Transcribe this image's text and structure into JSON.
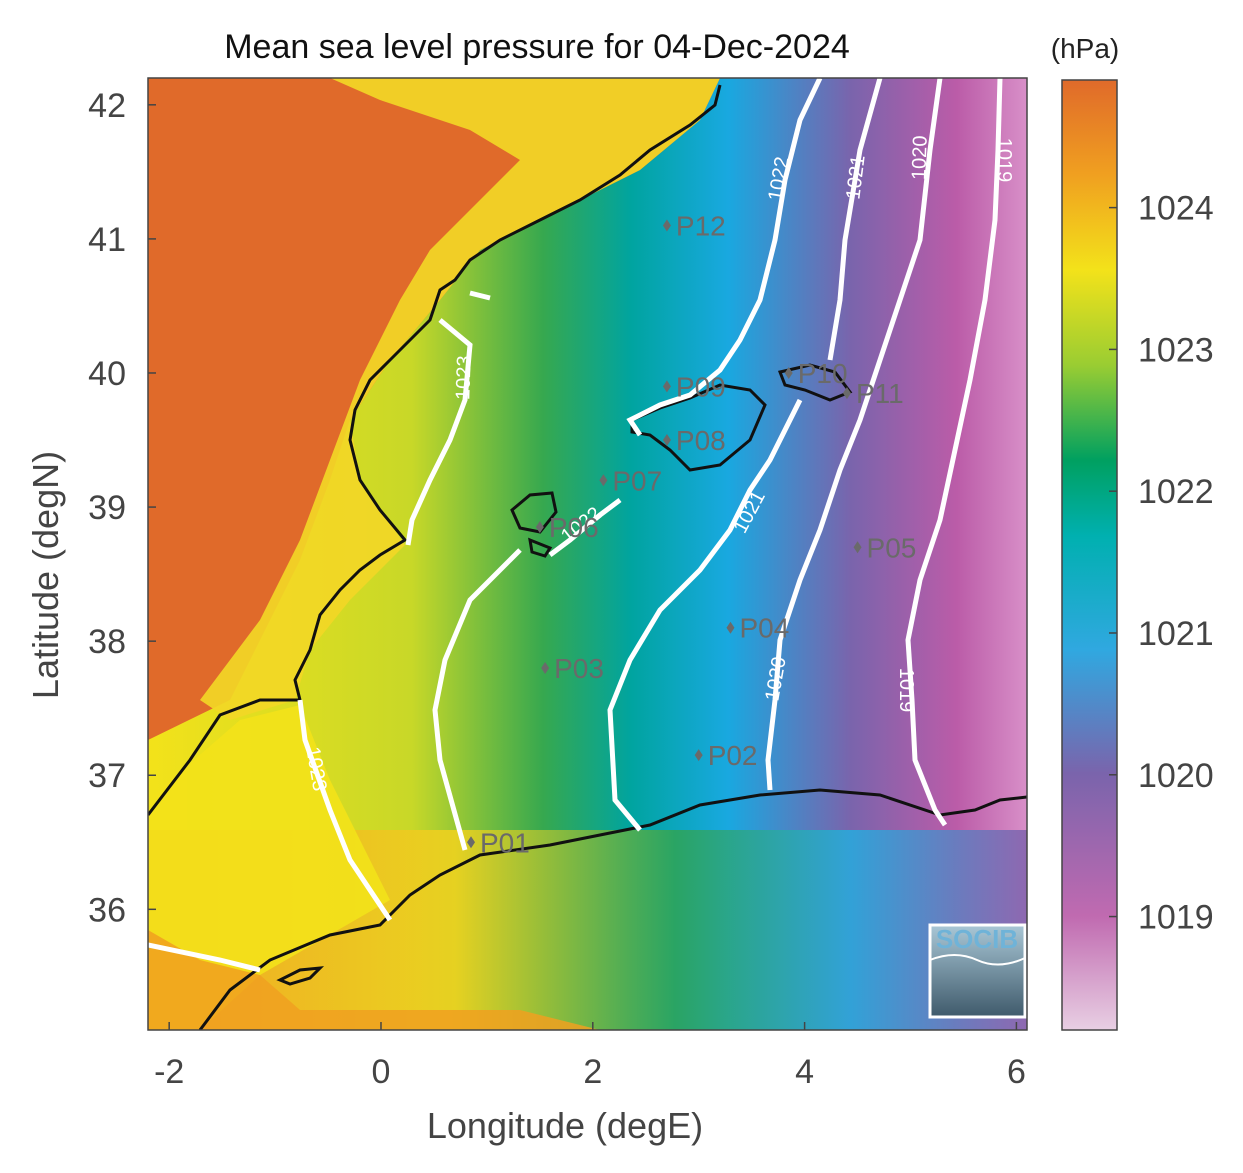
{
  "chart_data": {
    "type": "heatmap",
    "title": "Mean sea level pressure for 04-Dec-2024",
    "xlabel": "Longitude (degE)",
    "ylabel": "Latitude (degN)",
    "xlim": [
      -2.2,
      6.1
    ],
    "ylim": [
      35.1,
      42.2
    ],
    "xticks": [
      -2,
      0,
      2,
      4,
      6
    ],
    "yticks": [
      36,
      37,
      38,
      39,
      40,
      41,
      42
    ],
    "colorbar": {
      "unit": "(hPa)",
      "range": [
        1018.2,
        1024.9
      ],
      "ticks": [
        1019,
        1020,
        1021,
        1022,
        1023,
        1024
      ],
      "colors": [
        "#e8cfe3",
        "#c06ab0",
        "#7a64ac",
        "#30a8e0",
        "#00b0b0",
        "#00a060",
        "#9acd32",
        "#f3e21a",
        "#f0a020",
        "#e06a2a"
      ]
    },
    "contours": [
      {
        "level": "1023"
      },
      {
        "level": "1022"
      },
      {
        "level": "1021"
      },
      {
        "level": "1020"
      },
      {
        "level": "1019"
      }
    ],
    "stations": [
      {
        "name": "P01",
        "lon": 0.85,
        "lat": 36.5
      },
      {
        "name": "P02",
        "lon": 3.0,
        "lat": 37.15
      },
      {
        "name": "P03",
        "lon": 1.55,
        "lat": 37.8
      },
      {
        "name": "P04",
        "lon": 3.3,
        "lat": 38.1
      },
      {
        "name": "P05",
        "lon": 4.5,
        "lat": 38.7
      },
      {
        "name": "P06",
        "lon": 1.5,
        "lat": 38.85
      },
      {
        "name": "P07",
        "lon": 2.1,
        "lat": 39.2
      },
      {
        "name": "P08",
        "lon": 2.7,
        "lat": 39.5
      },
      {
        "name": "P09",
        "lon": 2.7,
        "lat": 39.9
      },
      {
        "name": "P10",
        "lon": 3.85,
        "lat": 40.0
      },
      {
        "name": "P11",
        "lon": 4.4,
        "lat": 39.85
      },
      {
        "name": "P12",
        "lon": 2.7,
        "lat": 41.1
      }
    ],
    "grid": false
  },
  "logo": {
    "text": "SOCIB"
  }
}
